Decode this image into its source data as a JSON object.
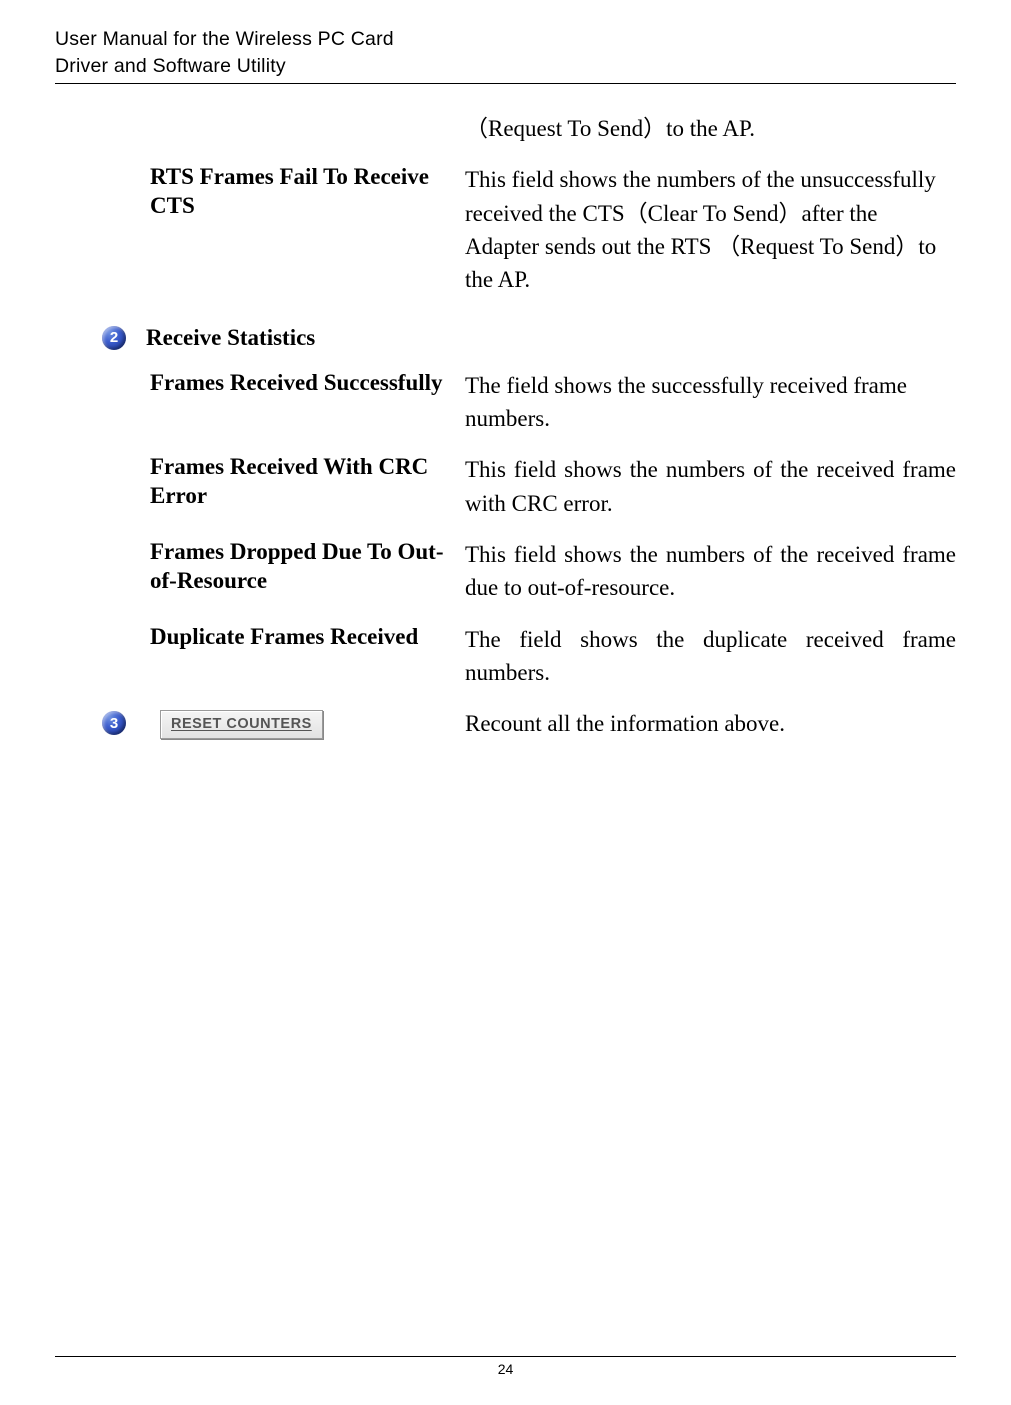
{
  "header": {
    "line1": "User Manual for the Wireless PC Card",
    "line2": "Driver and Software Utility"
  },
  "rows": {
    "orphan_right": "（Request To Send）to the AP.",
    "rts_fail": {
      "label": "RTS Frames Fail To Receive CTS",
      "desc": "This field shows the numbers of the unsuccessfully received the CTS（Clear To Send）after the Adapter sends out the RTS （Request To Send）to the AP."
    }
  },
  "section2": {
    "bullet": "2",
    "title": "Receive Statistics",
    "items": {
      "frs": {
        "label": "Frames Received Successfully",
        "desc": "The field shows the successfully received frame numbers."
      },
      "crc": {
        "label": "Frames Received With CRC Error",
        "desc": "This field shows the numbers of the received frame with CRC error."
      },
      "oor": {
        "label": "Frames Dropped Due To Out-of-Resource",
        "desc": "This field shows the numbers of the received frame due to out-of-resource."
      },
      "dup": {
        "label": "Duplicate Frames Received",
        "desc": "The field shows the duplicate received frame numbers."
      }
    }
  },
  "section3": {
    "bullet": "3",
    "button_label": "RESET COUNTERS",
    "desc": "Recount all the information above."
  },
  "footer": {
    "page_number": "24"
  }
}
